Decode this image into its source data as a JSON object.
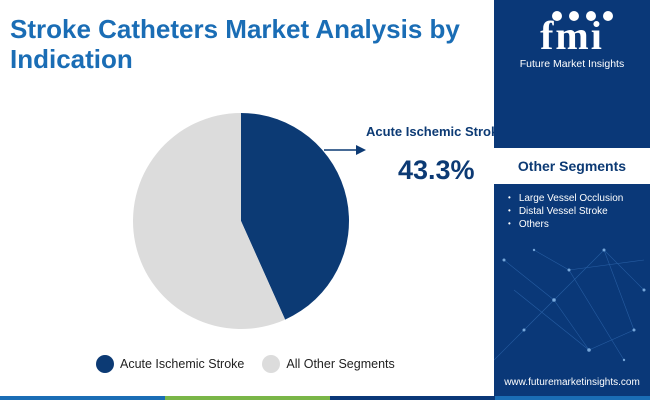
{
  "header": {
    "title": "Stroke Catheters Market Analysis by Indication"
  },
  "chart_data": {
    "type": "pie",
    "slices": [
      {
        "label": "Acute Ischemic Stroke",
        "value": 43.3,
        "color": "#0c3a74"
      },
      {
        "label": "All Other Segments",
        "value": 56.7,
        "color": "#dcdcdc"
      }
    ],
    "callout": {
      "label": "Acute Ischemic Stroke",
      "value_text": "43.3%"
    },
    "legend_position": "bottom"
  },
  "legend": {
    "items": [
      {
        "label": "Acute Ischemic Stroke",
        "color": "#0c3a74"
      },
      {
        "label": "All Other Segments",
        "color": "#dcdcdc"
      }
    ]
  },
  "sidebar": {
    "logo": {
      "letters": "fmi",
      "text": "Future Market Insights"
    },
    "segments_title": "Other Segments",
    "segments": [
      "Large Vessel Occlusion",
      "Distal Vessel Stroke",
      "Others"
    ],
    "website": "www.futuremarketinsights.com",
    "background": "#0a3878"
  },
  "bottom_bar_colors": [
    "#1a6db5",
    "#7ab648",
    "#0a3878",
    "#1a6db5"
  ]
}
